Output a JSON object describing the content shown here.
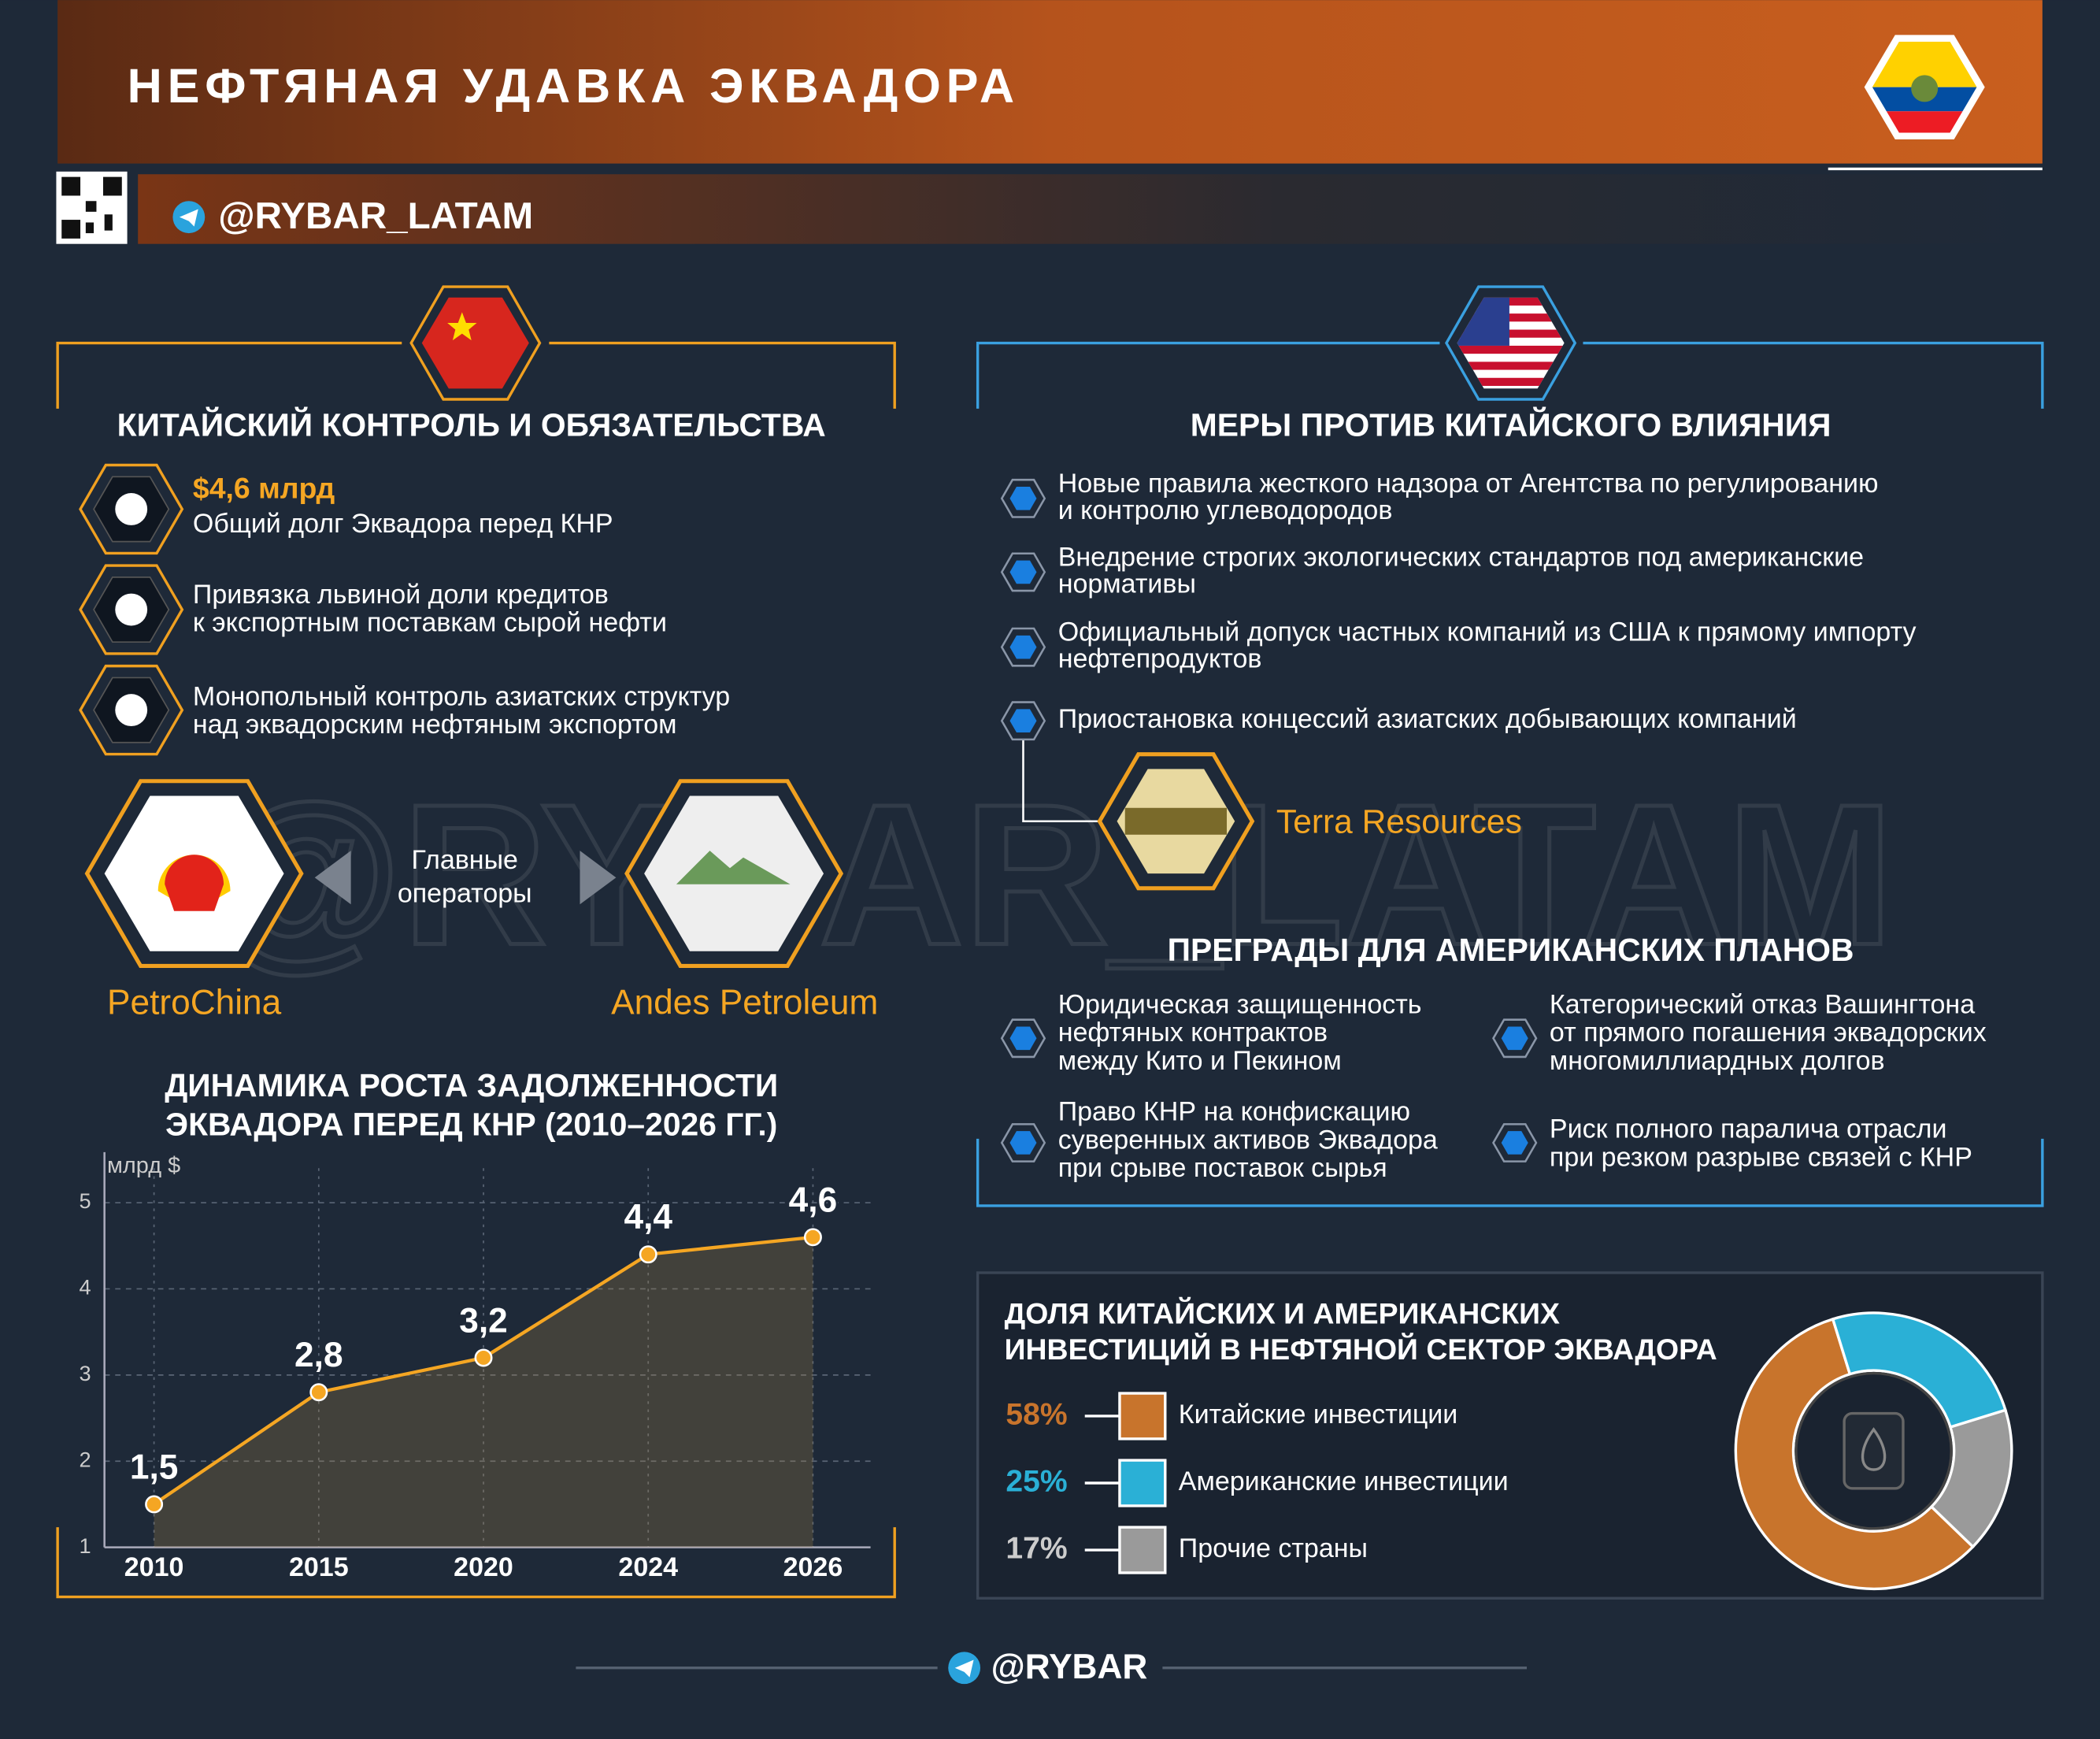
{
  "header": {
    "title": "НЕФТЯНАЯ УДАВКА ЭКВАДОРА",
    "channel": "@RYBAR_LATAM"
  },
  "watermark": "@RYBAR_LATAM",
  "china": {
    "heading": "КИТАЙСКИЙ КОНТРОЛЬ И ОБЯЗАТЕЛЬСТВА",
    "items": [
      {
        "highlight": "$4,6 млрд",
        "lines": [
          "Общий долг Эквадора перед КНР"
        ]
      },
      {
        "lines": [
          "Привязка львиной доли кредитов",
          "к экспортным поставкам сырой нефти"
        ]
      },
      {
        "lines": [
          "Монопольный контроль азиатских структур",
          "над эквадорским нефтяным экспортом"
        ]
      }
    ],
    "operators_label": [
      "Главные",
      "операторы"
    ],
    "operators": [
      "PetroChina",
      "Andes Petroleum"
    ]
  },
  "usa": {
    "heading": "МЕРЫ ПРОТИВ КИТАЙСКОГО ВЛИЯНИЯ",
    "measures": [
      {
        "lines": [
          "Новые правила жесткого надзора от Агентства по регулированию",
          "и контролю углеводородов"
        ]
      },
      {
        "lines": [
          "Внедрение строгих экологических стандартов под американские",
          "нормативы"
        ]
      },
      {
        "lines": [
          "Официальный допуск частных компаний из США к прямому импорту",
          "нефтепродуктов"
        ]
      },
      {
        "lines": [
          "Приостановка концессий азиатских добывающих компаний"
        ]
      }
    ],
    "company": "Terra Resources",
    "obstacles_heading": "ПРЕГРАДЫ ДЛЯ АМЕРИКАНСКИХ ПЛАНОВ",
    "obstacles": [
      {
        "lines": [
          "Юридическая защищенность",
          "нефтяных контрактов",
          "между Кито и Пекином"
        ]
      },
      {
        "lines": [
          "Право КНР на конфискацию",
          "суверенных активов Эквадора",
          "при срыве поставок сырья"
        ]
      },
      {
        "lines": [
          "Категорический отказ Вашингтона",
          "от прямого погашения эквадорских",
          "многомиллиардных долгов"
        ]
      },
      {
        "lines": [
          "Риск полного паралича отрасли",
          "при резком разрыве связей с КНР"
        ]
      }
    ]
  },
  "chart_data": [
    {
      "type": "line",
      "title": [
        "ДИНАМИКА РОСТА ЗАДОЛЖЕННОСТИ",
        "ЭКВАДОРА ПЕРЕД КНР (2010–2026 ГГ.)"
      ],
      "y_label": "млрд $",
      "categories": [
        "2010",
        "2015",
        "2020",
        "2024",
        "2026"
      ],
      "values": [
        1.5,
        2.8,
        3.2,
        4.4,
        4.6
      ],
      "value_labels": [
        "1,5",
        "2,8",
        "3,2",
        "4,4",
        "4,6"
      ],
      "color": "#f5a623",
      "ylim": [
        1,
        5.4
      ],
      "yticks": [
        1,
        2,
        3,
        4,
        5
      ],
      "grid": true
    },
    {
      "type": "pie",
      "title": [
        "ДОЛЯ КИТАЙСКИХ И АМЕРИКАНСКИХ",
        "ИНВЕСТИЦИЙ В НЕФТЯНОЙ СЕКТОР ЭКВАДОРА"
      ],
      "categories": [
        "Китайские инвестиции",
        "Американские инвестиции",
        "Прочие страны"
      ],
      "values": [
        58,
        25,
        17
      ],
      "value_labels": [
        "58%",
        "25%",
        "17%"
      ],
      "colors": [
        "#c8742c",
        "#2ab0d6",
        "#9a9a9a"
      ],
      "donut": true
    }
  ],
  "footer": {
    "brand": "@RYBAR"
  }
}
